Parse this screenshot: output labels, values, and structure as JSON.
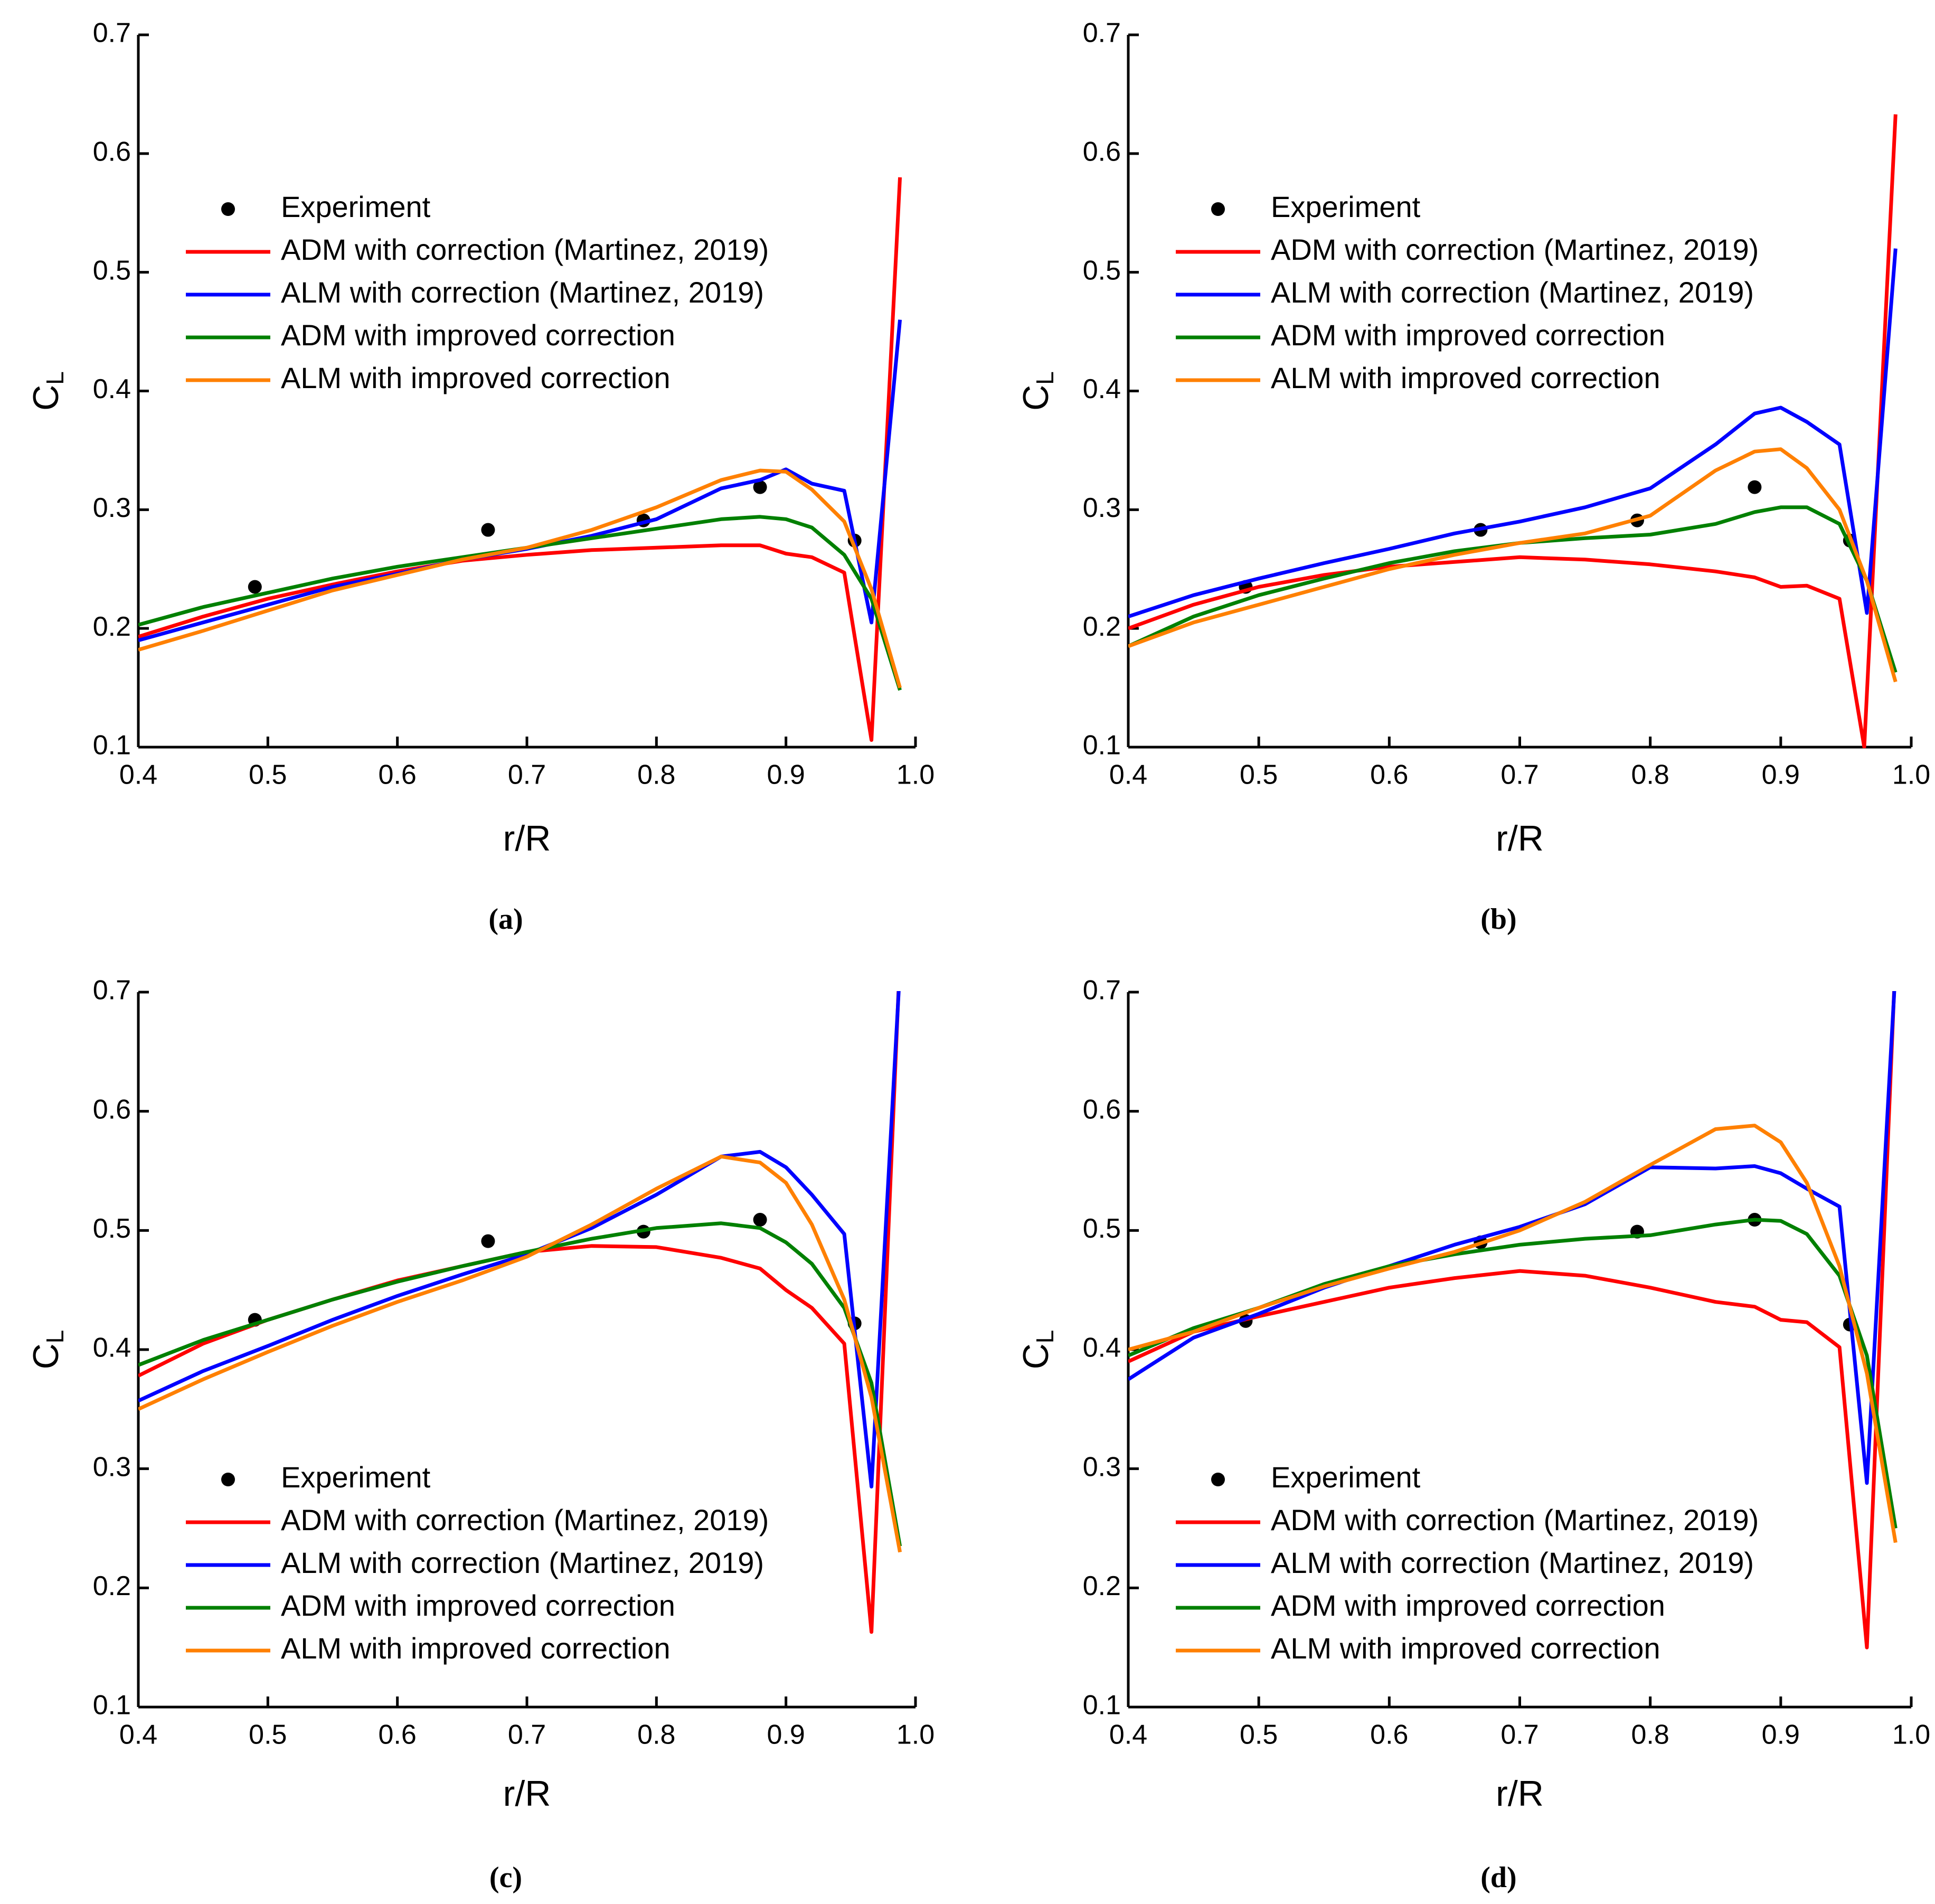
{
  "chart_data": [
    {
      "type": "line",
      "caption": "(a)",
      "xlabel": "r/R",
      "ylabel": "C",
      "ylabel_sub": "L",
      "legend": "upper left",
      "xlim": [
        0.4,
        1.0
      ],
      "ylim": [
        0.1,
        0.7
      ],
      "xticks": [
        0.4,
        0.5,
        0.6,
        0.7,
        0.8,
        0.9,
        {
          "value": 1.0,
          "label": "1.0"
        }
      ],
      "yticks": [
        0.1,
        0.2,
        0.3,
        0.4,
        0.5,
        0.6,
        0.7
      ],
      "series": [
        {
          "name": "Experiment",
          "type": "scatter",
          "color": "#000000",
          "x": [
            0.49,
            0.67,
            0.79,
            0.88,
            0.953
          ],
          "values": [
            0.235,
            0.283,
            0.291,
            0.319,
            0.274
          ]
        },
        {
          "name": "ADM with correction (Martinez, 2019)",
          "color": "#ff0000",
          "x": [
            0.4,
            0.45,
            0.5,
            0.55,
            0.6,
            0.65,
            0.7,
            0.75,
            0.8,
            0.85,
            0.88,
            0.9,
            0.92,
            0.945,
            0.966,
            0.988
          ],
          "values": [
            0.193,
            0.21,
            0.225,
            0.237,
            0.248,
            0.257,
            0.262,
            0.266,
            0.268,
            0.27,
            0.27,
            0.263,
            0.26,
            0.247,
            0.106,
            0.58
          ]
        },
        {
          "name": "ALM with correction (Martinez, 2019)",
          "color": "#0000ff",
          "x": [
            0.4,
            0.45,
            0.5,
            0.55,
            0.6,
            0.65,
            0.7,
            0.75,
            0.8,
            0.85,
            0.88,
            0.9,
            0.92,
            0.945,
            0.966,
            0.988
          ],
          "values": [
            0.19,
            0.205,
            0.22,
            0.235,
            0.246,
            0.258,
            0.267,
            0.278,
            0.292,
            0.318,
            0.325,
            0.334,
            0.322,
            0.316,
            0.205,
            0.46
          ]
        },
        {
          "name": "ADM with improved correction",
          "color": "#008000",
          "x": [
            0.4,
            0.45,
            0.5,
            0.55,
            0.6,
            0.65,
            0.7,
            0.75,
            0.8,
            0.85,
            0.88,
            0.9,
            0.92,
            0.945,
            0.966,
            0.988
          ],
          "values": [
            0.203,
            0.218,
            0.23,
            0.242,
            0.252,
            0.26,
            0.268,
            0.276,
            0.284,
            0.292,
            0.294,
            0.292,
            0.285,
            0.262,
            0.225,
            0.148
          ]
        },
        {
          "name": "ALM with improved correction",
          "color": "#ff8000",
          "x": [
            0.4,
            0.45,
            0.5,
            0.55,
            0.6,
            0.65,
            0.7,
            0.75,
            0.8,
            0.85,
            0.88,
            0.9,
            0.92,
            0.945,
            0.966,
            0.988
          ],
          "values": [
            0.182,
            0.198,
            0.215,
            0.232,
            0.245,
            0.258,
            0.268,
            0.283,
            0.302,
            0.325,
            0.333,
            0.332,
            0.317,
            0.29,
            0.233,
            0.15
          ]
        }
      ]
    },
    {
      "type": "line",
      "caption": "(b)",
      "xlabel": "r/R",
      "ylabel": "C",
      "ylabel_sub": "L",
      "legend": "upper left",
      "xlim": [
        0.4,
        1.0
      ],
      "ylim": [
        0.1,
        0.7
      ],
      "xticks": [
        0.4,
        0.5,
        0.6,
        0.7,
        0.8,
        0.9,
        {
          "value": 1.0,
          "label": "1.0"
        }
      ],
      "yticks": [
        0.1,
        0.2,
        0.3,
        0.4,
        0.5,
        0.6,
        0.7
      ],
      "series": [
        {
          "name": "Experiment",
          "type": "scatter",
          "color": "#000000",
          "x": [
            0.49,
            0.67,
            0.79,
            0.88,
            0.953
          ],
          "values": [
            0.235,
            0.283,
            0.291,
            0.319,
            0.274
          ]
        },
        {
          "name": "ADM with correction (Martinez, 2019)",
          "color": "#ff0000",
          "x": [
            0.4,
            0.45,
            0.5,
            0.55,
            0.6,
            0.65,
            0.7,
            0.75,
            0.8,
            0.85,
            0.88,
            0.9,
            0.92,
            0.945,
            0.964,
            0.988
          ],
          "values": [
            0.2,
            0.22,
            0.235,
            0.245,
            0.252,
            0.256,
            0.26,
            0.258,
            0.254,
            0.248,
            0.243,
            0.235,
            0.236,
            0.225,
            0.1,
            0.633
          ]
        },
        {
          "name": "ALM with correction (Martinez, 2019)",
          "color": "#0000ff",
          "x": [
            0.4,
            0.45,
            0.5,
            0.55,
            0.6,
            0.65,
            0.7,
            0.75,
            0.8,
            0.85,
            0.88,
            0.9,
            0.92,
            0.945,
            0.966,
            0.988
          ],
          "values": [
            0.21,
            0.228,
            0.242,
            0.255,
            0.267,
            0.28,
            0.29,
            0.302,
            0.318,
            0.355,
            0.381,
            0.386,
            0.374,
            0.355,
            0.213,
            0.52
          ]
        },
        {
          "name": "ADM with improved correction",
          "color": "#008000",
          "x": [
            0.4,
            0.45,
            0.5,
            0.55,
            0.6,
            0.65,
            0.7,
            0.75,
            0.8,
            0.85,
            0.88,
            0.9,
            0.92,
            0.945,
            0.966,
            0.988
          ],
          "values": [
            0.185,
            0.21,
            0.228,
            0.242,
            0.255,
            0.265,
            0.272,
            0.276,
            0.279,
            0.288,
            0.298,
            0.302,
            0.302,
            0.288,
            0.24,
            0.163
          ]
        },
        {
          "name": "ALM with improved correction",
          "color": "#ff8000",
          "x": [
            0.4,
            0.45,
            0.5,
            0.55,
            0.6,
            0.65,
            0.7,
            0.75,
            0.8,
            0.85,
            0.88,
            0.9,
            0.92,
            0.945,
            0.966,
            0.988
          ],
          "values": [
            0.185,
            0.205,
            0.22,
            0.235,
            0.25,
            0.262,
            0.272,
            0.28,
            0.295,
            0.333,
            0.349,
            0.351,
            0.335,
            0.3,
            0.24,
            0.155
          ]
        }
      ]
    },
    {
      "type": "line",
      "caption": "(c)",
      "xlabel": "r/R",
      "ylabel": "C",
      "ylabel_sub": "L",
      "legend": "lower left",
      "xlim": [
        0.4,
        1.0
      ],
      "ylim": [
        0.1,
        0.7
      ],
      "xticks": [
        0.4,
        0.5,
        0.6,
        0.7,
        0.8,
        0.9,
        {
          "value": 1.0,
          "label": "1.0"
        }
      ],
      "yticks": [
        0.1,
        0.2,
        0.3,
        0.4,
        0.5,
        0.6,
        0.7
      ],
      "series": [
        {
          "name": "Experiment",
          "type": "scatter",
          "color": "#000000",
          "x": [
            0.49,
            0.67,
            0.79,
            0.88,
            0.953
          ],
          "values": [
            0.425,
            0.491,
            0.499,
            0.509,
            0.422
          ]
        },
        {
          "name": "ADM with correction (Martinez, 2019)",
          "color": "#ff0000",
          "x": [
            0.4,
            0.45,
            0.5,
            0.55,
            0.6,
            0.65,
            0.7,
            0.75,
            0.8,
            0.85,
            0.88,
            0.9,
            0.92,
            0.945,
            0.966,
            0.988
          ],
          "values": [
            0.378,
            0.405,
            0.425,
            0.442,
            0.458,
            0.47,
            0.482,
            0.487,
            0.486,
            0.477,
            0.468,
            0.45,
            0.435,
            0.405,
            0.163,
            0.73
          ]
        },
        {
          "name": "ALM with correction (Martinez, 2019)",
          "color": "#0000ff",
          "x": [
            0.4,
            0.45,
            0.5,
            0.55,
            0.6,
            0.65,
            0.7,
            0.75,
            0.8,
            0.85,
            0.88,
            0.9,
            0.92,
            0.945,
            0.966,
            0.988
          ],
          "values": [
            0.357,
            0.382,
            0.403,
            0.425,
            0.445,
            0.463,
            0.48,
            0.502,
            0.53,
            0.562,
            0.566,
            0.553,
            0.53,
            0.497,
            0.285,
            0.72
          ]
        },
        {
          "name": "ADM with improved correction",
          "color": "#008000",
          "x": [
            0.4,
            0.45,
            0.5,
            0.55,
            0.6,
            0.65,
            0.7,
            0.75,
            0.8,
            0.85,
            0.88,
            0.9,
            0.92,
            0.945,
            0.966,
            0.988
          ],
          "values": [
            0.387,
            0.408,
            0.425,
            0.442,
            0.457,
            0.47,
            0.482,
            0.493,
            0.502,
            0.506,
            0.502,
            0.49,
            0.472,
            0.435,
            0.372,
            0.235
          ]
        },
        {
          "name": "ALM with improved correction",
          "color": "#ff8000",
          "x": [
            0.4,
            0.45,
            0.5,
            0.55,
            0.6,
            0.65,
            0.7,
            0.75,
            0.8,
            0.85,
            0.88,
            0.9,
            0.92,
            0.945,
            0.966,
            0.988
          ],
          "values": [
            0.35,
            0.375,
            0.398,
            0.42,
            0.44,
            0.458,
            0.478,
            0.505,
            0.535,
            0.562,
            0.557,
            0.54,
            0.505,
            0.442,
            0.36,
            0.23
          ]
        }
      ]
    },
    {
      "type": "line",
      "caption": "(d)",
      "xlabel": "r/R",
      "ylabel": "C",
      "ylabel_sub": "L",
      "legend": "lower left",
      "xlim": [
        0.4,
        1.0
      ],
      "ylim": [
        0.1,
        0.7
      ],
      "xticks": [
        0.4,
        0.5,
        0.6,
        0.7,
        0.8,
        0.9,
        {
          "value": 1.0,
          "label": "1.0"
        }
      ],
      "yticks": [
        0.1,
        0.2,
        0.3,
        0.4,
        0.5,
        0.6,
        0.7
      ],
      "series": [
        {
          "name": "Experiment",
          "type": "scatter",
          "color": "#000000",
          "x": [
            0.49,
            0.67,
            0.79,
            0.88,
            0.953
          ],
          "values": [
            0.424,
            0.49,
            0.499,
            0.509,
            0.421
          ]
        },
        {
          "name": "ADM with correction (Martinez, 2019)",
          "color": "#ff0000",
          "x": [
            0.4,
            0.45,
            0.5,
            0.55,
            0.6,
            0.65,
            0.7,
            0.75,
            0.8,
            0.85,
            0.88,
            0.9,
            0.92,
            0.945,
            0.966,
            0.988
          ],
          "values": [
            0.39,
            0.415,
            0.428,
            0.44,
            0.452,
            0.46,
            0.466,
            0.462,
            0.452,
            0.44,
            0.436,
            0.425,
            0.423,
            0.402,
            0.15,
            0.73
          ]
        },
        {
          "name": "ALM with correction (Martinez, 2019)",
          "color": "#0000ff",
          "x": [
            0.4,
            0.45,
            0.5,
            0.55,
            0.6,
            0.65,
            0.7,
            0.75,
            0.8,
            0.85,
            0.88,
            0.9,
            0.92,
            0.945,
            0.966,
            0.988
          ],
          "values": [
            0.375,
            0.41,
            0.43,
            0.452,
            0.47,
            0.488,
            0.503,
            0.522,
            0.553,
            0.552,
            0.554,
            0.548,
            0.535,
            0.52,
            0.288,
            0.72
          ]
        },
        {
          "name": "ADM with improved correction",
          "color": "#008000",
          "x": [
            0.4,
            0.45,
            0.5,
            0.55,
            0.6,
            0.65,
            0.7,
            0.75,
            0.8,
            0.85,
            0.88,
            0.9,
            0.92,
            0.945,
            0.966,
            0.988
          ],
          "values": [
            0.395,
            0.418,
            0.435,
            0.455,
            0.47,
            0.48,
            0.488,
            0.493,
            0.496,
            0.505,
            0.509,
            0.508,
            0.497,
            0.462,
            0.395,
            0.25
          ]
        },
        {
          "name": "ALM with improved correction",
          "color": "#ff8000",
          "x": [
            0.4,
            0.45,
            0.5,
            0.55,
            0.6,
            0.65,
            0.7,
            0.75,
            0.8,
            0.85,
            0.88,
            0.9,
            0.92,
            0.945,
            0.966,
            0.988
          ],
          "values": [
            0.4,
            0.415,
            0.435,
            0.453,
            0.468,
            0.482,
            0.5,
            0.524,
            0.555,
            0.585,
            0.588,
            0.574,
            0.54,
            0.47,
            0.38,
            0.238
          ]
        }
      ]
    }
  ]
}
